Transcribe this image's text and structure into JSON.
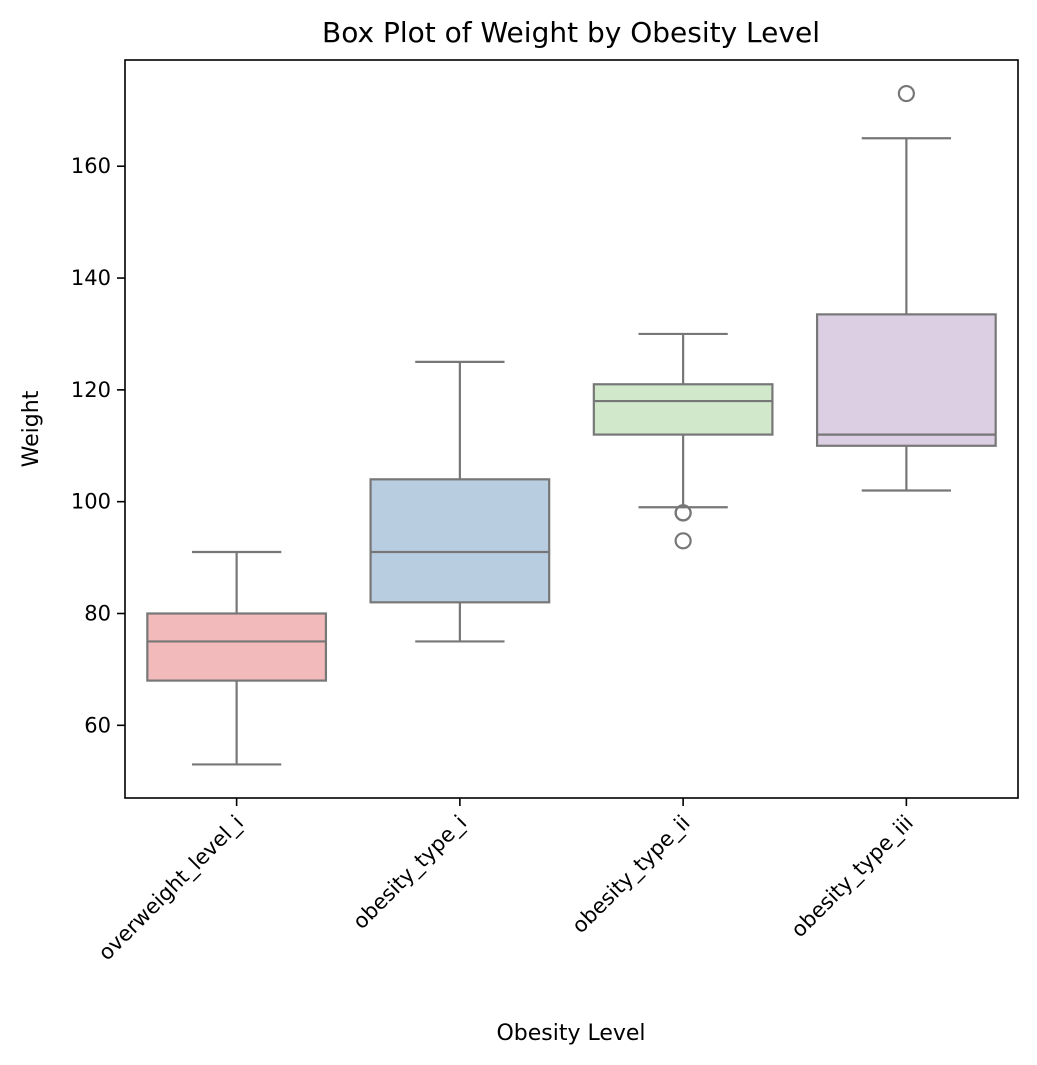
{
  "chart_data": {
    "type": "box",
    "title": "Box Plot of Weight by Obesity Level",
    "xlabel": "Obesity Level",
    "ylabel": "Weight",
    "ylim": [
      47,
      179
    ],
    "yticks": [
      60,
      80,
      100,
      120,
      140,
      160
    ],
    "grid": false,
    "categories": [
      "overweight_level_i",
      "obesity_type_i",
      "obesity_type_ii",
      "obesity_type_iii"
    ],
    "colors": [
      "#f2baba",
      "#b8cde0",
      "#d2e8cb",
      "#ddcfe3"
    ],
    "line_color": "#777777",
    "boxes": [
      {
        "whisker_low": 53,
        "q1": 68,
        "median": 75,
        "q3": 80,
        "whisker_high": 91,
        "outliers": []
      },
      {
        "whisker_low": 75,
        "q1": 82,
        "median": 91,
        "q3": 104,
        "whisker_high": 125,
        "outliers": []
      },
      {
        "whisker_low": 99,
        "q1": 112,
        "median": 118,
        "q3": 121,
        "whisker_high": 130,
        "outliers": [
          98,
          98,
          93
        ]
      },
      {
        "whisker_low": 102,
        "q1": 110,
        "median": 112,
        "q3": 133.5,
        "whisker_high": 165,
        "outliers": [
          173
        ]
      }
    ]
  }
}
